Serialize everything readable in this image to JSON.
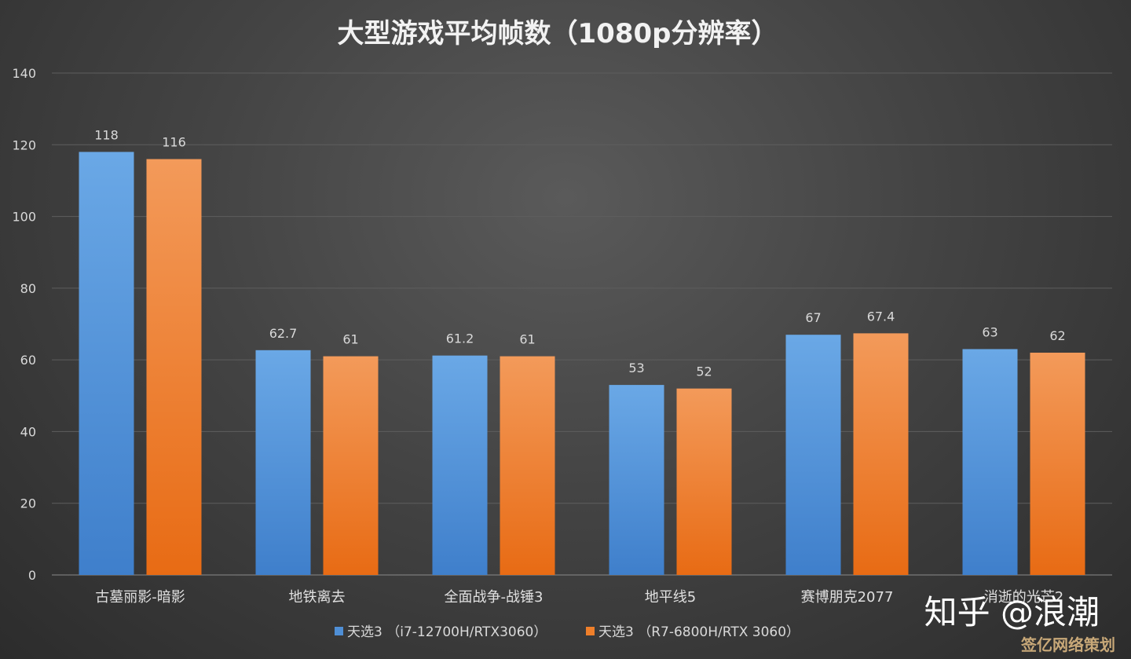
{
  "chart_data": {
    "type": "bar",
    "title": "大型游戏平均帧数（1080p分辨率）",
    "categories": [
      "古墓丽影-暗影",
      "地铁离去",
      "全面战争-战锤3",
      "地平线5",
      "赛博朋克2077",
      "消逝的光芒2"
    ],
    "series": [
      {
        "name": "天选3 （i7-12700H/RTX3060）",
        "color": "#4f8fd6",
        "values": [
          118,
          62.7,
          61.2,
          53,
          67,
          63
        ],
        "labels": [
          "118",
          "62.7",
          "61.2",
          "53",
          "67",
          "63"
        ]
      },
      {
        "name": "天选3 （R7-6800H/RTX 3060）",
        "color": "#ef7f2a",
        "values": [
          116,
          61,
          61,
          52,
          67.4,
          62
        ],
        "labels": [
          "116",
          "61",
          "61",
          "52",
          "67.4",
          "62"
        ]
      }
    ],
    "ylim": [
      0,
      140
    ],
    "yticks": [
      "0",
      "20",
      "40",
      "60",
      "80",
      "100",
      "120",
      "140"
    ],
    "grid": true,
    "legend_position": "bottom"
  },
  "watermark": {
    "main": "知乎 @浪潮",
    "corner": "签亿网络策划"
  }
}
